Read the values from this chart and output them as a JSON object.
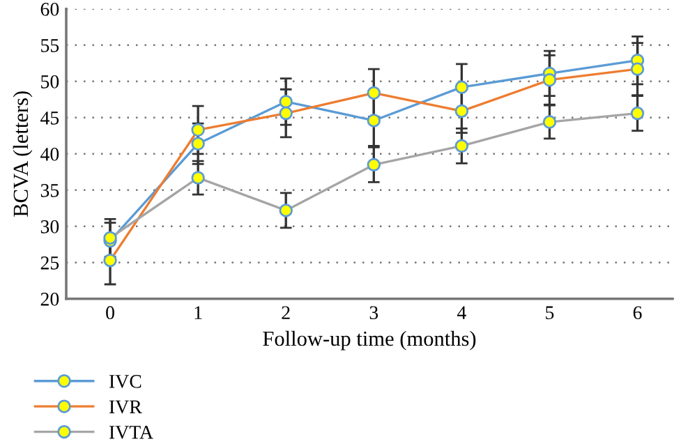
{
  "chart_data": {
    "type": "line",
    "xlabel": "Follow-up time (months)",
    "ylabel": "BCVA (letters)",
    "x": [
      0,
      1,
      2,
      3,
      4,
      5,
      6
    ],
    "series": [
      {
        "name": "IVC",
        "color": "#5b9bd5",
        "values": [
          28.0,
          41.4,
          47.2,
          44.6,
          49.2,
          51.1,
          52.9
        ],
        "errors": [
          2.5,
          2.8,
          3.2,
          3.5,
          3.2,
          3.1,
          3.3
        ]
      },
      {
        "name": "IVR",
        "color": "#ed7d31",
        "values": [
          25.3,
          43.3,
          45.6,
          48.4,
          45.9,
          50.2,
          51.7
        ],
        "errors": [
          3.3,
          3.3,
          3.3,
          3.3,
          3.0,
          3.4,
          3.6
        ]
      },
      {
        "name": "IVTA",
        "color": "#a5a5a5",
        "values": [
          28.4,
          36.7,
          32.2,
          38.5,
          41.1,
          44.4,
          45.6
        ],
        "errors": [
          2.6,
          2.3,
          2.4,
          2.4,
          2.4,
          2.3,
          2.4
        ]
      }
    ],
    "xlim": [
      -0.5,
      6.4
    ],
    "xticks": [
      0,
      1,
      2,
      3,
      4,
      5,
      6
    ],
    "ylim": [
      20,
      60
    ],
    "yticks": [
      20,
      25,
      30,
      35,
      40,
      45,
      50,
      55,
      60
    ],
    "grid": "y",
    "legend": "bottom left",
    "marker": "circle",
    "line_style": "solid"
  }
}
